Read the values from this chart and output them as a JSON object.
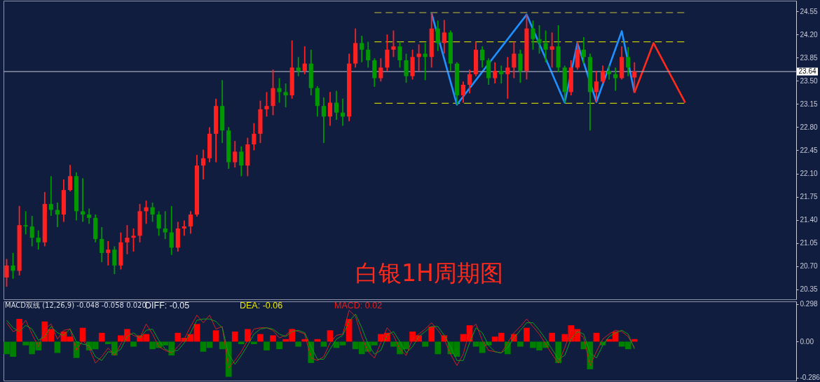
{
  "chart_data": [
    {
      "type": "candlestick",
      "title": "白银1H周期图",
      "tick_labels": "y",
      "categories": [
        null,
        null,
        null,
        null,
        null,
        null,
        null,
        null,
        null,
        null,
        null,
        null,
        null,
        null,
        null,
        null,
        null,
        null,
        null,
        null,
        null,
        null,
        null,
        null,
        null,
        null,
        null,
        null,
        null,
        null,
        null,
        null,
        null,
        null,
        null,
        null,
        null,
        null,
        null,
        null,
        null,
        null,
        null,
        null,
        null,
        null,
        null,
        null,
        null,
        null,
        null,
        null,
        null,
        null,
        null,
        null,
        null,
        null,
        null,
        null,
        null,
        null,
        null,
        null,
        null,
        null,
        null,
        null,
        null,
        null,
        null,
        null,
        null,
        null,
        null,
        null,
        null,
        null,
        null,
        null,
        null,
        null,
        null,
        null,
        null,
        null,
        null,
        null,
        null,
        null,
        null,
        null,
        null,
        null,
        null,
        null,
        null,
        null,
        null,
        null,
        null,
        null,
        null,
        null,
        null,
        null,
        null,
        null,
        null,
        null,
        null,
        null,
        null,
        null,
        null,
        null,
        null,
        null,
        null,
        null,
        null,
        null,
        null,
        null,
        null
      ],
      "ohlc": [
        [
          20.53,
          20.81,
          20.39,
          20.71
        ],
        [
          20.71,
          20.9,
          20.51,
          20.63
        ],
        [
          20.63,
          21.61,
          20.56,
          21.32
        ],
        [
          21.32,
          21.53,
          21.18,
          21.3
        ],
        [
          21.3,
          21.46,
          21.0,
          21.13
        ],
        [
          21.13,
          21.24,
          20.95,
          21.06
        ],
        [
          21.06,
          21.82,
          21.0,
          21.64
        ],
        [
          21.64,
          22.06,
          21.46,
          21.55
        ],
        [
          21.55,
          21.66,
          21.29,
          21.48
        ],
        [
          21.48,
          22.01,
          21.37,
          21.85
        ],
        [
          21.85,
          22.23,
          21.83,
          22.06
        ],
        [
          22.06,
          22.12,
          21.39,
          21.53
        ],
        [
          21.53,
          22.03,
          21.37,
          21.48
        ],
        [
          21.48,
          21.57,
          21.34,
          21.43
        ],
        [
          21.43,
          21.48,
          21.06,
          21.11
        ],
        [
          21.11,
          21.29,
          20.76,
          20.9
        ],
        [
          20.9,
          21.08,
          20.71,
          20.95
        ],
        [
          20.95,
          21.0,
          20.58,
          20.71
        ],
        [
          20.71,
          21.21,
          20.65,
          21.06
        ],
        [
          21.06,
          21.32,
          20.88,
          21.13
        ],
        [
          21.13,
          21.27,
          20.92,
          21.16
        ],
        [
          21.16,
          21.64,
          21.06,
          21.53
        ],
        [
          21.53,
          21.69,
          21.34,
          21.59
        ],
        [
          21.59,
          21.66,
          21.37,
          21.48
        ],
        [
          21.48,
          21.53,
          21.16,
          21.27
        ],
        [
          21.27,
          21.53,
          21.11,
          21.21
        ],
        [
          21.21,
          21.61,
          20.87,
          20.98
        ],
        [
          20.98,
          21.37,
          20.92,
          21.27
        ],
        [
          21.27,
          21.39,
          21.16,
          21.3
        ],
        [
          21.3,
          21.53,
          21.19,
          21.48
        ],
        [
          21.48,
          22.38,
          21.45,
          22.22
        ],
        [
          22.22,
          22.46,
          22.01,
          22.33
        ],
        [
          22.33,
          22.8,
          22.27,
          22.7
        ],
        [
          22.7,
          23.23,
          22.27,
          23.12
        ],
        [
          23.12,
          23.51,
          22.56,
          22.75
        ],
        [
          22.75,
          22.8,
          22.17,
          22.27
        ],
        [
          22.27,
          22.59,
          22.19,
          22.43
        ],
        [
          22.43,
          22.51,
          22.06,
          22.22
        ],
        [
          22.22,
          22.64,
          22.06,
          22.54
        ],
        [
          22.54,
          22.86,
          22.45,
          22.7
        ],
        [
          22.7,
          23.2,
          22.56,
          23.07
        ],
        [
          23.07,
          23.33,
          22.96,
          23.12
        ],
        [
          23.12,
          23.67,
          22.98,
          23.39
        ],
        [
          23.39,
          23.54,
          23.17,
          23.33
        ],
        [
          23.33,
          23.46,
          23.1,
          23.28
        ],
        [
          23.28,
          24.11,
          23.23,
          23.7
        ],
        [
          23.7,
          23.86,
          23.57,
          23.65
        ],
        [
          23.65,
          24.02,
          23.6,
          23.76
        ],
        [
          23.76,
          23.97,
          23.28,
          23.39
        ],
        [
          23.39,
          23.42,
          22.96,
          23.12
        ],
        [
          23.12,
          23.25,
          22.56,
          22.96
        ],
        [
          22.96,
          23.33,
          22.82,
          23.17
        ],
        [
          23.17,
          23.35,
          22.91,
          23.02
        ],
        [
          23.02,
          23.23,
          22.82,
          22.96
        ],
        [
          22.96,
          23.91,
          22.89,
          23.76
        ],
        [
          23.76,
          24.29,
          23.7,
          24.07
        ],
        [
          24.07,
          24.18,
          23.78,
          23.97
        ],
        [
          23.97,
          24.09,
          23.7,
          23.81
        ],
        [
          23.81,
          23.84,
          23.41,
          23.54
        ],
        [
          23.54,
          23.84,
          23.49,
          23.7
        ],
        [
          23.7,
          24.2,
          23.65,
          23.97
        ],
        [
          23.97,
          24.26,
          23.86,
          24.02
        ],
        [
          24.02,
          24.09,
          23.7,
          23.81
        ],
        [
          23.81,
          23.91,
          23.47,
          23.57
        ],
        [
          23.57,
          23.97,
          23.52,
          23.86
        ],
        [
          23.86,
          24.05,
          23.65,
          23.91
        ],
        [
          23.91,
          24.07,
          23.51,
          23.86
        ],
        [
          23.86,
          24.52,
          23.7,
          24.29
        ],
        [
          24.29,
          24.41,
          23.95,
          24.07
        ],
        [
          24.07,
          24.42,
          23.91,
          24.23
        ],
        [
          24.23,
          24.26,
          23.65,
          23.76
        ],
        [
          23.76,
          23.78,
          23.14,
          23.28
        ],
        [
          23.28,
          23.49,
          23.17,
          23.44
        ],
        [
          23.44,
          23.67,
          23.31,
          23.6
        ],
        [
          23.6,
          24.09,
          23.57,
          23.97
        ],
        [
          23.97,
          24.02,
          23.7,
          23.81
        ],
        [
          23.81,
          23.84,
          23.44,
          23.54
        ],
        [
          23.54,
          23.78,
          23.46,
          23.65
        ],
        [
          23.65,
          23.73,
          23.46,
          23.6
        ],
        [
          23.6,
          23.86,
          23.23,
          23.7
        ],
        [
          23.7,
          24.09,
          23.54,
          23.91
        ],
        [
          23.91,
          23.97,
          23.47,
          23.65
        ],
        [
          23.65,
          24.5,
          23.52,
          24.29
        ],
        [
          24.29,
          24.41,
          23.97,
          24.13
        ],
        [
          24.13,
          24.34,
          23.91,
          24.07
        ],
        [
          24.07,
          24.26,
          23.78,
          23.97
        ],
        [
          23.97,
          24.23,
          23.7,
          24.02
        ],
        [
          24.02,
          24.34,
          23.63,
          23.7
        ],
        [
          23.7,
          23.73,
          23.17,
          23.33
        ],
        [
          23.33,
          23.81,
          23.28,
          23.7
        ],
        [
          23.7,
          24.09,
          23.67,
          23.97
        ],
        [
          23.97,
          24.16,
          23.76,
          23.86
        ],
        [
          23.86,
          23.91,
          22.75,
          23.33
        ],
        [
          23.33,
          23.65,
          23.18,
          23.49
        ],
        [
          23.49,
          23.73,
          23.46,
          23.65
        ],
        [
          23.65,
          23.73,
          23.52,
          23.6
        ],
        [
          23.6,
          23.7,
          23.35,
          23.54
        ],
        [
          23.54,
          24.02,
          23.52,
          23.86
        ],
        [
          23.86,
          24.01,
          23.57,
          23.7
        ],
        [
          23.55,
          23.78,
          23.32,
          23.64
        ],
        null,
        null,
        null,
        null,
        null,
        null,
        null,
        null,
        null,
        null,
        null,
        null,
        null,
        null,
        null,
        null,
        null,
        null,
        null,
        null,
        null,
        null,
        null,
        null,
        null
      ],
      "colors": [
        "#ff2020",
        "#009900",
        "#ff2020",
        "#009900",
        "#009900",
        "#009900",
        "#ff2020",
        "#009900",
        "#009900",
        "#ff2020",
        "#ff2020",
        "#009900",
        "#009900",
        "#009900",
        "#009900",
        "#009900",
        "#ff2020",
        "#009900",
        "#ff2020",
        "#ff2020",
        "#ff2020",
        "#ff2020",
        "#ff2020",
        "#009900",
        "#009900",
        "#009900",
        "#009900",
        "#ff2020",
        "#ff2020",
        "#ff2020",
        "#ff2020",
        "#ff2020",
        "#ff2020",
        "#ff2020",
        "#009900",
        "#009900",
        "#ff2020",
        "#009900",
        "#ff2020",
        "#ff2020",
        "#ff2020",
        "#ff2020",
        "#ff2020",
        "#009900",
        "#009900",
        "#ff2020",
        "#009900",
        "#ff2020",
        "#009900",
        "#009900",
        "#009900",
        "#ff2020",
        "#009900",
        "#009900",
        "#ff2020",
        "#ff2020",
        "#009900",
        "#009900",
        "#009900",
        "#ff2020",
        "#ff2020",
        "#ff2020",
        "#009900",
        "#009900",
        "#ff2020",
        "#ff2020",
        "#009900",
        "#ff2020",
        "#009900",
        "#ff2020",
        "#009900",
        "#009900",
        "#ff2020",
        "#ff2020",
        "#ff2020",
        "#009900",
        "#009900",
        "#ff2020",
        "#009900",
        "#ff2020",
        "#ff2020",
        "#009900",
        "#ff2020",
        "#009900",
        "#009900",
        "#009900",
        "#ff2020",
        "#009900",
        "#009900",
        "#ff2020",
        "#ff2020",
        "#009900",
        "#009900",
        "#ff2020",
        "#ff2020",
        "#009900",
        "#009900",
        "#ff2020",
        "#009900",
        "#ff2020",
        null,
        null,
        null,
        null,
        null,
        null,
        null,
        null,
        null,
        null,
        null,
        null,
        null,
        null,
        null,
        null,
        null,
        null,
        null,
        null,
        null,
        null,
        null,
        null,
        null
      ],
      "ylim": [
        20.2,
        24.71
      ],
      "yticks": [
        20.35,
        {
          "value": 20.7,
          "label": "20.70"
        },
        21.05,
        {
          "value": 21.4,
          "label": "21.40"
        },
        21.75,
        {
          "value": 22.1,
          "label": "22.10"
        },
        22.45,
        {
          "value": 22.8,
          "label": "22.80"
        },
        23.15,
        {
          "value": 23.5,
          "label": "23.50"
        },
        23.85,
        {
          "value": 24.2,
          "label": "24.20"
        },
        24.55
      ],
      "ref_lines": [
        {
          "axis": "y",
          "value": 23.64,
          "label": "23.64",
          "color": "#a3a7b8"
        }
      ],
      "series": [
        {
          "type": "line",
          "color": "#8a8a3c",
          "line_style": "dashed",
          "values": [
            null,
            null,
            null,
            null,
            null,
            null,
            null,
            null,
            null,
            null,
            null,
            null,
            null,
            null,
            null,
            null,
            null,
            null,
            null,
            null,
            null,
            null,
            null,
            null,
            null,
            null,
            null,
            null,
            null,
            null,
            null,
            null,
            null,
            null,
            null,
            null,
            null,
            null,
            null,
            null,
            null,
            null,
            null,
            null,
            null,
            null,
            null,
            null,
            null,
            null,
            null,
            null,
            null,
            null,
            null,
            null,
            null,
            null,
            24.53,
            24.53,
            24.53,
            24.53,
            24.53,
            24.53,
            24.53,
            24.53,
            24.53,
            24.53,
            24.53,
            24.53,
            24.53,
            24.53,
            24.53,
            24.53,
            24.53,
            24.53,
            24.53,
            24.53,
            24.53,
            24.53,
            24.53,
            24.53,
            24.53,
            24.53,
            24.53,
            24.53,
            24.53,
            24.53,
            24.53,
            24.53,
            24.53,
            24.53,
            24.53,
            24.53,
            24.53,
            24.53,
            24.53,
            24.53,
            24.53,
            24.53,
            24.53,
            24.53,
            24.53,
            24.53,
            24.53,
            24.53,
            24.53,
            24.53,
            null,
            null,
            null,
            null,
            null,
            null,
            null,
            null,
            null,
            null,
            null,
            null,
            null,
            null,
            null,
            null,
            null
          ]
        },
        {
          "type": "line",
          "color": "#c8c800",
          "line_style": "dashed",
          "values": [
            null,
            null,
            null,
            null,
            null,
            null,
            null,
            null,
            null,
            null,
            null,
            null,
            null,
            null,
            null,
            null,
            null,
            null,
            null,
            null,
            null,
            null,
            null,
            null,
            null,
            null,
            null,
            null,
            null,
            null,
            null,
            null,
            null,
            null,
            null,
            null,
            null,
            null,
            null,
            null,
            null,
            null,
            null,
            null,
            null,
            null,
            null,
            null,
            null,
            null,
            null,
            null,
            null,
            null,
            null,
            null,
            null,
            null,
            24.09,
            24.09,
            24.09,
            24.09,
            24.09,
            24.09,
            24.09,
            24.09,
            24.09,
            24.09,
            24.09,
            24.09,
            24.09,
            24.09,
            24.09,
            24.09,
            24.09,
            24.09,
            24.09,
            24.09,
            24.09,
            24.09,
            24.09,
            24.09,
            24.09,
            24.09,
            24.09,
            24.09,
            24.09,
            24.09,
            24.09,
            24.09,
            24.09,
            24.09,
            24.09,
            24.09,
            24.09,
            24.09,
            24.09,
            24.09,
            24.09,
            24.09,
            24.09,
            24.09,
            24.09,
            24.09,
            24.09,
            24.09,
            24.09,
            24.09,
            null,
            null,
            null,
            null,
            null,
            null,
            null,
            null,
            null,
            null,
            null,
            null,
            null,
            null,
            null,
            null,
            null
          ]
        },
        {
          "type": "line",
          "color": "#c8c800",
          "line_style": "dashed",
          "values": [
            null,
            null,
            null,
            null,
            null,
            null,
            null,
            null,
            null,
            null,
            null,
            null,
            null,
            null,
            null,
            null,
            null,
            null,
            null,
            null,
            null,
            null,
            null,
            null,
            null,
            null,
            null,
            null,
            null,
            null,
            null,
            null,
            null,
            null,
            null,
            null,
            null,
            null,
            null,
            null,
            null,
            null,
            null,
            null,
            null,
            null,
            null,
            null,
            null,
            null,
            null,
            null,
            null,
            null,
            null,
            null,
            null,
            null,
            23.16,
            23.16,
            23.16,
            23.16,
            23.16,
            23.16,
            23.16,
            23.16,
            23.16,
            23.16,
            23.16,
            23.16,
            23.16,
            23.16,
            23.16,
            23.16,
            23.16,
            23.16,
            23.16,
            23.16,
            23.16,
            23.16,
            23.16,
            23.16,
            23.16,
            23.16,
            23.16,
            23.16,
            23.16,
            23.16,
            23.16,
            23.16,
            23.16,
            23.16,
            23.16,
            23.16,
            23.16,
            23.16,
            23.16,
            23.16,
            23.16,
            23.16,
            23.16,
            23.16,
            23.16,
            23.16,
            23.16,
            23.16,
            23.16,
            23.16,
            null,
            null,
            null,
            null,
            null,
            null,
            null,
            null,
            null,
            null,
            null,
            null,
            null,
            null,
            null,
            null,
            null
          ]
        },
        {
          "type": "line",
          "color": "#1e90ff",
          "values": [
            null,
            null,
            null,
            null,
            null,
            null,
            null,
            null,
            null,
            null,
            null,
            null,
            null,
            null,
            null,
            null,
            null,
            null,
            null,
            null,
            null,
            null,
            null,
            null,
            null,
            null,
            null,
            null,
            null,
            null,
            null,
            null,
            null,
            null,
            null,
            null,
            null,
            null,
            null,
            null,
            null,
            null,
            null,
            null,
            null,
            null,
            null,
            null,
            null,
            null,
            null,
            null,
            null,
            null,
            null,
            null,
            null,
            null,
            null,
            null,
            null,
            null,
            null,
            null,
            null,
            null,
            null,
            24.52,
            null,
            null,
            null,
            23.14,
            null,
            null,
            null,
            null,
            null,
            null,
            null,
            null,
            null,
            null,
            24.5,
            null,
            null,
            null,
            null,
            null,
            23.17,
            null,
            24.07,
            null,
            null,
            23.18,
            null,
            null,
            null,
            24.25,
            null,
            23.32,
            null,
            null,
            null,
            null,
            null,
            null,
            null,
            null,
            null,
            null,
            null,
            null,
            null,
            null,
            null,
            null,
            null,
            null,
            null,
            null,
            null,
            null,
            null,
            null,
            null
          ]
        },
        {
          "type": "line",
          "color": "#ff2a1a",
          "values": [
            null,
            null,
            null,
            null,
            null,
            null,
            null,
            null,
            null,
            null,
            null,
            null,
            null,
            null,
            null,
            null,
            null,
            null,
            null,
            null,
            null,
            null,
            null,
            null,
            null,
            null,
            null,
            null,
            null,
            null,
            null,
            null,
            null,
            null,
            null,
            null,
            null,
            null,
            null,
            null,
            null,
            null,
            null,
            null,
            null,
            null,
            null,
            null,
            null,
            null,
            null,
            null,
            null,
            null,
            null,
            null,
            null,
            null,
            null,
            null,
            null,
            null,
            null,
            null,
            null,
            null,
            null,
            null,
            null,
            null,
            null,
            null,
            null,
            null,
            null,
            null,
            null,
            null,
            null,
            null,
            null,
            null,
            null,
            null,
            null,
            null,
            null,
            null,
            null,
            null,
            null,
            null,
            null,
            null,
            null,
            null,
            null,
            null,
            null,
            23.32,
            null,
            null,
            24.07,
            null,
            null,
            null,
            null,
            23.17,
            null,
            null,
            null,
            null,
            null,
            null,
            null,
            null,
            null,
            null,
            null,
            null,
            null,
            null,
            null,
            null,
            null
          ]
        }
      ]
    },
    {
      "type": "bar",
      "title": "MACD双线 (12,26,9) -0.048 -0.058 0.020",
      "annotations": [
        "DIFF: -0.05",
        "DEA: -0.06",
        "MACD: 0.02"
      ],
      "tick_labels": "y",
      "categories": [
        null,
        null,
        null,
        null,
        null,
        null,
        null,
        null,
        null,
        null,
        null,
        null,
        null,
        null,
        null,
        null,
        null,
        null,
        null,
        null,
        null,
        null,
        null,
        null,
        null,
        null,
        null,
        null,
        null,
        null,
        null,
        null,
        null,
        null,
        null,
        null,
        null,
        null,
        null,
        null,
        null,
        null,
        null,
        null,
        null,
        null,
        null,
        null,
        null,
        null,
        null,
        null,
        null,
        null,
        null,
        null,
        null,
        null,
        null,
        null,
        null,
        null,
        null,
        null,
        null,
        null,
        null,
        null,
        null,
        null,
        null,
        null,
        null,
        null,
        null,
        null,
        null,
        null,
        null,
        null,
        null,
        null,
        null,
        null,
        null,
        null,
        null,
        null,
        null,
        null,
        null,
        null,
        null,
        null,
        null,
        null,
        null,
        null,
        null,
        null,
        null,
        null,
        null,
        null,
        null,
        null,
        null,
        null,
        null,
        null,
        null,
        null,
        null,
        null,
        null,
        null,
        null,
        null,
        null,
        null,
        null,
        null,
        null,
        null,
        null
      ],
      "ylim": [
        -0.31,
        0.32
      ],
      "yticks": [
        0.298,
        {
          "value": 0,
          "label": "0.00"
        },
        -0.286
      ],
      "series": [
        {
          "type": "bar",
          "values": [
            -0.1,
            -0.12,
            0.18,
            -0.03,
            -0.1,
            -0.07,
            0.16,
            0.1,
            -0.09,
            0.08,
            0.04,
            -0.13,
            0.11,
            -0.07,
            -0.06,
            0.07,
            -0.02,
            -0.11,
            0.05,
            0.1,
            -0.04,
            0.05,
            0.06,
            -0.06,
            -0.05,
            -0.03,
            -0.11,
            0.07,
            0.03,
            0.06,
            0.14,
            -0.08,
            -0.05,
            0.09,
            -0.06,
            -0.28,
            0.08,
            -0.02,
            0.1,
            -0.02,
            0.06,
            -0.07,
            0.05,
            -0.06,
            0.02,
            0.1,
            -0.04,
            0.02,
            -0.17,
            0.02,
            -0.04,
            0.09,
            -0.05,
            -0.03,
            0.18,
            -0.06,
            -0.1,
            -0.08,
            -0.03,
            0.06,
            0.07,
            -0.04,
            -0.1,
            -0.06,
            0.08,
            0.05,
            -0.04,
            0.12,
            -0.1,
            0.05,
            -0.1,
            -0.12,
            0.06,
            0.13,
            -0.04,
            -0.09,
            -0.03,
            0.04,
            0.07,
            -0.1,
            0.06,
            -0.04,
            0.11,
            -0.05,
            -0.07,
            -0.05,
            0.07,
            -0.17,
            0.06,
            0.13,
            0.1,
            -0.06,
            -0.22,
            0.07,
            -0.03,
            0.02,
            0.08,
            -0.04,
            -0.06,
            0.02,
            null,
            null,
            null,
            null,
            null,
            null,
            null,
            null,
            null,
            null,
            null,
            null,
            null,
            null,
            null,
            null,
            null,
            null,
            null,
            null,
            null,
            null,
            null,
            null,
            null
          ],
          "colors": [
            "#008000",
            "#008000",
            "#ff0000",
            "#008000",
            "#008000",
            "#008000",
            "#ff0000",
            "#ff0000",
            "#008000",
            "#ff0000",
            "#ff0000",
            "#008000",
            "#ff0000",
            "#008000",
            "#008000",
            "#ff0000",
            "#008000",
            "#008000",
            "#ff0000",
            "#ff0000",
            "#008000",
            "#ff0000",
            "#ff0000",
            "#008000",
            "#008000",
            "#008000",
            "#008000",
            "#ff0000",
            "#ff0000",
            "#ff0000",
            "#ff0000",
            "#008000",
            "#008000",
            "#ff0000",
            "#008000",
            "#008000",
            "#ff0000",
            "#008000",
            "#ff0000",
            "#008000",
            "#ff0000",
            "#008000",
            "#ff0000",
            "#008000",
            "#ff0000",
            "#ff0000",
            "#008000",
            "#ff0000",
            "#008000",
            "#ff0000",
            "#008000",
            "#ff0000",
            "#008000",
            "#008000",
            "#ff0000",
            "#008000",
            "#008000",
            "#008000",
            "#008000",
            "#ff0000",
            "#ff0000",
            "#008000",
            "#008000",
            "#008000",
            "#ff0000",
            "#ff0000",
            "#008000",
            "#ff0000",
            "#008000",
            "#ff0000",
            "#008000",
            "#008000",
            "#ff0000",
            "#ff0000",
            "#008000",
            "#008000",
            "#008000",
            "#ff0000",
            "#ff0000",
            "#008000",
            "#ff0000",
            "#008000",
            "#ff0000",
            "#008000",
            "#008000",
            "#008000",
            "#ff0000",
            "#008000",
            "#ff0000",
            "#ff0000",
            "#ff0000",
            "#008000",
            "#008000",
            "#ff0000",
            "#008000",
            "#ff0000",
            "#ff0000",
            "#008000",
            "#008000",
            "#ff0000",
            null,
            null,
            null,
            null,
            null,
            null,
            null,
            null,
            null,
            null,
            null,
            null,
            null,
            null,
            null,
            null,
            null,
            null,
            null,
            null,
            null,
            null,
            null,
            null,
            null
          ]
        },
        {
          "type": "line",
          "color": "#d42020",
          "values": [
            0.15,
            0.08,
            0.1,
            0.17,
            0.06,
            -0.04,
            0.1,
            0.14,
            0.02,
            0.09,
            0.1,
            -0.07,
            0.01,
            -0.05,
            -0.17,
            -0.12,
            -0.05,
            -0.11,
            -0.02,
            0.08,
            0.05,
            0.03,
            0.14,
            0.06,
            -0.04,
            -0.07,
            -0.09,
            -0.04,
            0.02,
            0.12,
            0.21,
            0.15,
            0.21,
            0.1,
            0.12,
            -0.21,
            -0.15,
            -0.08,
            0.01,
            0.1,
            0.11,
            0.11,
            0.09,
            0.03,
            0.05,
            0.1,
            0.08,
            0.06,
            -0.13,
            -0.15,
            -0.12,
            -0.01,
            0.05,
            0.06,
            0.25,
            0.2,
            0.04,
            -0.08,
            -0.13,
            -0.01,
            0.11,
            0.05,
            -0.06,
            -0.11,
            0.02,
            0.06,
            0.1,
            0.15,
            0.09,
            0.02,
            -0.1,
            -0.19,
            -0.1,
            0.09,
            0.14,
            0.01,
            -0.07,
            -0.08,
            -0.09,
            -0.01,
            0.07,
            0.12,
            0.18,
            0.12,
            0.06,
            -0.02,
            -0.1,
            -0.17,
            -0.05,
            0.09,
            0.08,
            0.03,
            -0.19,
            -0.08,
            0.02,
            0.06,
            0.09,
            0.08,
            0.04,
            -0.048,
            null,
            null,
            null,
            null,
            null,
            null,
            null,
            null,
            null,
            null,
            null,
            null,
            null,
            null,
            null,
            null,
            null,
            null,
            null,
            null,
            null,
            null,
            null,
            null,
            null
          ]
        },
        {
          "type": "line",
          "color": "#169c16",
          "values": [
            0.17,
            0.11,
            0.08,
            0.13,
            0.1,
            0.01,
            0.04,
            0.12,
            0.07,
            0.05,
            0.1,
            0,
            -0.02,
            -0.03,
            -0.12,
            -0.15,
            -0.08,
            -0.09,
            -0.06,
            0.04,
            0.07,
            0.03,
            0.09,
            0.1,
            0.01,
            -0.06,
            -0.08,
            -0.07,
            -0.01,
            0.07,
            0.17,
            0.18,
            0.18,
            0.16,
            0.11,
            -0.1,
            -0.18,
            -0.11,
            -0.03,
            0.06,
            0.1,
            0.11,
            0.1,
            0.06,
            0.04,
            0.08,
            0.09,
            0.07,
            -0.04,
            -0.14,
            -0.14,
            -0.06,
            0.02,
            0.05,
            0.16,
            0.22,
            0.11,
            -0.02,
            -0.1,
            -0.07,
            0.05,
            0.08,
            0,
            -0.09,
            -0.04,
            0.04,
            0.08,
            0.12,
            0.12,
            0.05,
            -0.04,
            -0.15,
            -0.15,
            -0.01,
            0.11,
            0.07,
            -0.03,
            -0.08,
            -0.09,
            -0.05,
            0.03,
            0.09,
            0.15,
            0.15,
            0.09,
            0.02,
            -0.06,
            -0.14,
            -0.11,
            0.02,
            0.08,
            0.06,
            -0.09,
            -0.13,
            -0.03,
            0.04,
            0.07,
            0.09,
            0.06,
            -0.058,
            null,
            null,
            null,
            null,
            null,
            null,
            null,
            null,
            null,
            null,
            null,
            null,
            null,
            null,
            null,
            null,
            null,
            null,
            null,
            null,
            null,
            null,
            null,
            null,
            null
          ]
        }
      ]
    }
  ]
}
